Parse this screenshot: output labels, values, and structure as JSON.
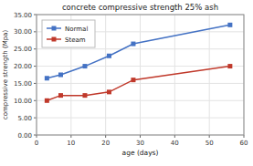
{
  "chart_data": {
    "type": "line",
    "title": "concrete compressive strength  25% ash",
    "xlabel": "age (days)",
    "ylabel": "compressive strength (Mpa)",
    "x": [
      3,
      7,
      14,
      21,
      28,
      56
    ],
    "series": [
      {
        "name": "Normal",
        "color": "#4472C4",
        "marker": "square",
        "values": [
          16.5,
          17.5,
          20.0,
          23.0,
          26.5,
          32.0
        ]
      },
      {
        "name": "Steam",
        "color": "#C0392B",
        "marker": "square",
        "values": [
          10.0,
          11.5,
          11.5,
          12.5,
          16.0,
          20.0
        ]
      }
    ],
    "xlim": [
      0,
      60
    ],
    "ylim": [
      0,
      35
    ],
    "xticks": [
      0,
      10,
      20,
      30,
      40,
      50,
      60
    ],
    "yticks": [
      {
        "value": 0,
        "label": "0.00"
      },
      {
        "value": 5,
        "label": "5.00"
      },
      {
        "value": 10,
        "label": "10.00"
      },
      {
        "value": 15,
        "label": "15.00"
      },
      {
        "value": 20,
        "label": "20.00"
      },
      {
        "value": 25,
        "label": "25.00"
      },
      {
        "value": 30,
        "label": "30.00"
      },
      {
        "value": 35,
        "label": "35.00"
      }
    ],
    "grid": true,
    "legend": "upper left"
  }
}
